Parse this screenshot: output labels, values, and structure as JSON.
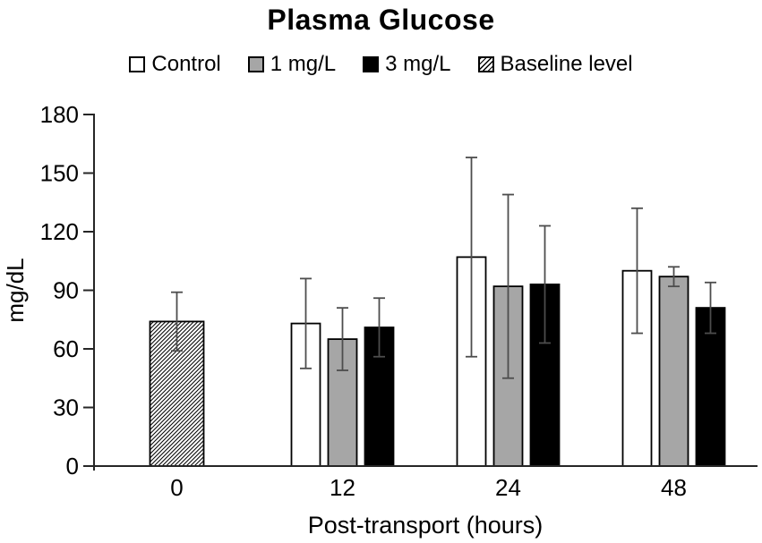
{
  "chart_data": {
    "type": "bar",
    "title": "Plasma Glucose",
    "xlabel": "Post-transport (hours)",
    "ylabel": "mg/dL",
    "ylim": [
      0,
      180
    ],
    "ytick_step": 30,
    "yticks": [
      0,
      30,
      60,
      90,
      120,
      150,
      180
    ],
    "categories": [
      "0",
      "12",
      "24",
      "48"
    ],
    "grid": false,
    "legend_position": "top",
    "error_bars": "symmetric, show both directions",
    "series": [
      {
        "name": "Control",
        "style": "white",
        "fill": "#ffffff",
        "values": [
          null,
          73,
          107,
          100
        ],
        "error": [
          null,
          23,
          51,
          32
        ]
      },
      {
        "name": "1 mg/L",
        "style": "gray",
        "fill": "#a6a6a6",
        "values": [
          null,
          65,
          92,
          97
        ],
        "error": [
          null,
          16,
          47,
          5
        ]
      },
      {
        "name": "3 mg/L",
        "style": "black",
        "fill": "#000000",
        "values": [
          null,
          71,
          93,
          81
        ],
        "error": [
          null,
          15,
          30,
          13
        ]
      },
      {
        "name": "Baseline level",
        "style": "hatched",
        "fill": "hatch",
        "values": [
          74,
          null,
          null,
          null
        ],
        "error": [
          15,
          null,
          null,
          null
        ]
      }
    ],
    "colors": {
      "bar_border": "#000000",
      "gray_fill": "#a6a6a6",
      "error_bar": "#4d4d4d",
      "axis": "#262626",
      "text": "#000000",
      "background": "#ffffff"
    }
  }
}
